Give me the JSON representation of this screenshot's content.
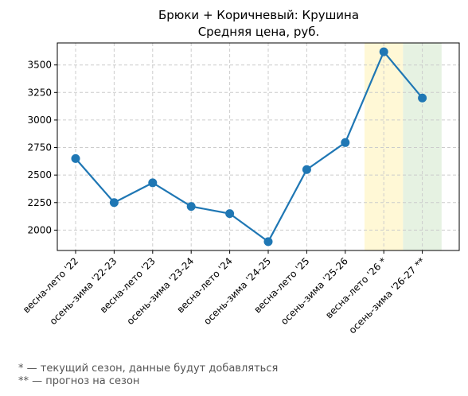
{
  "chart_data": {
    "type": "line",
    "title": "Брюки + Коричневый: Крушина",
    "subtitle": "Средняя цена, руб.",
    "xlabel": "",
    "ylabel": "",
    "categories": [
      "весна-лето '22",
      "осень-зима '22-23",
      "весна-лето '23",
      "осень-зима '23-24",
      "весна-лето '24",
      "осень-зима '24-25",
      "весна-лето '25",
      "осень-зима '25-26",
      "весна-лето '26 *",
      "осень-зима '26-27 **"
    ],
    "series": [
      {
        "values": [
          2650,
          2250,
          2430,
          2215,
          2150,
          1895,
          2550,
          2795,
          3620,
          3200
        ]
      }
    ],
    "ylim": [
      1815,
      3700
    ],
    "yticks": [
      2000,
      2250,
      2500,
      2750,
      3000,
      3250,
      3500
    ],
    "ytick_labels": [
      "2000",
      "2250",
      "2500",
      "2750",
      "3000",
      "3250",
      "3500"
    ],
    "grid": true,
    "highlights": [
      {
        "category_index": 8,
        "color": "#fff8d6"
      },
      {
        "category_index": 9,
        "color": "#e6f2e2"
      }
    ],
    "line_color": "#1f77b4"
  },
  "footnotes": [
    "* — текущий сезон, данные будут добавляться",
    "** — прогноз на сезон"
  ]
}
